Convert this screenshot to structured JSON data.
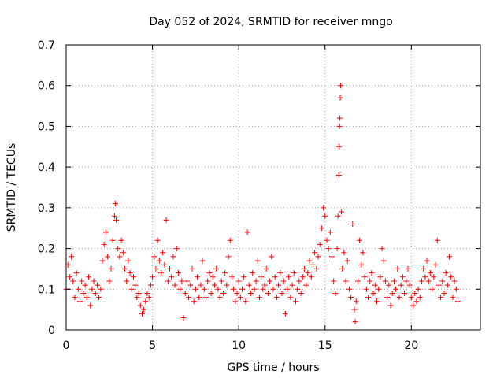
{
  "chart_data": {
    "type": "scatter",
    "title": "Day 052 of 2024, SRMTID for receiver mngo",
    "xlabel": "GPS time / hours",
    "ylabel": "SRMTID / TECUs",
    "xlim": [
      0,
      24
    ],
    "ylim": [
      0,
      0.7
    ],
    "xticks": [
      0,
      5,
      10,
      15,
      20
    ],
    "yticks": [
      0,
      0.1,
      0.2,
      0.3,
      0.4,
      0.5,
      0.6,
      0.7
    ],
    "xtick_labels": [
      "0",
      "5",
      "10",
      "15",
      "20"
    ],
    "ytick_labels": [
      "0",
      "0.1",
      "0.2",
      "0.3",
      "0.4",
      "0.5",
      "0.6",
      "0.7"
    ],
    "grid": true,
    "marker": "+",
    "color": "#ff0000",
    "series": [
      {
        "name": "SRMTID",
        "points": [
          [
            0.0,
            0.1
          ],
          [
            0.1,
            0.16
          ],
          [
            0.2,
            0.13
          ],
          [
            0.3,
            0.18
          ],
          [
            0.4,
            0.12
          ],
          [
            0.5,
            0.08
          ],
          [
            0.6,
            0.14
          ],
          [
            0.7,
            0.1
          ],
          [
            0.8,
            0.07
          ],
          [
            0.9,
            0.12
          ],
          [
            1.0,
            0.09
          ],
          [
            1.1,
            0.11
          ],
          [
            1.2,
            0.08
          ],
          [
            1.3,
            0.13
          ],
          [
            1.4,
            0.06
          ],
          [
            1.5,
            0.1
          ],
          [
            1.6,
            0.12
          ],
          [
            1.7,
            0.09
          ],
          [
            1.8,
            0.11
          ],
          [
            1.9,
            0.08
          ],
          [
            2.0,
            0.1
          ],
          [
            2.1,
            0.17
          ],
          [
            2.2,
            0.21
          ],
          [
            2.3,
            0.24
          ],
          [
            2.4,
            0.18
          ],
          [
            2.5,
            0.12
          ],
          [
            2.6,
            0.15
          ],
          [
            2.7,
            0.22
          ],
          [
            2.8,
            0.28
          ],
          [
            2.85,
            0.31
          ],
          [
            2.9,
            0.27
          ],
          [
            3.0,
            0.2
          ],
          [
            3.1,
            0.18
          ],
          [
            3.2,
            0.22
          ],
          [
            3.3,
            0.19
          ],
          [
            3.4,
            0.15
          ],
          [
            3.5,
            0.12
          ],
          [
            3.6,
            0.17
          ],
          [
            3.7,
            0.14
          ],
          [
            3.8,
            0.1
          ],
          [
            3.9,
            0.13
          ],
          [
            4.0,
            0.11
          ],
          [
            4.1,
            0.08
          ],
          [
            4.2,
            0.09
          ],
          [
            4.3,
            0.06
          ],
          [
            4.4,
            0.04
          ],
          [
            4.5,
            0.05
          ],
          [
            4.6,
            0.07
          ],
          [
            4.7,
            0.09
          ],
          [
            4.8,
            0.08
          ],
          [
            4.9,
            0.11
          ],
          [
            5.0,
            0.13
          ],
          [
            5.1,
            0.18
          ],
          [
            5.2,
            0.15
          ],
          [
            5.3,
            0.22
          ],
          [
            5.4,
            0.17
          ],
          [
            5.5,
            0.14
          ],
          [
            5.6,
            0.19
          ],
          [
            5.7,
            0.16
          ],
          [
            5.8,
            0.27
          ],
          [
            5.9,
            0.12
          ],
          [
            6.0,
            0.15
          ],
          [
            6.1,
            0.13
          ],
          [
            6.2,
            0.18
          ],
          [
            6.3,
            0.11
          ],
          [
            6.4,
            0.2
          ],
          [
            6.5,
            0.14
          ],
          [
            6.6,
            0.1
          ],
          [
            6.7,
            0.12
          ],
          [
            6.8,
            0.03
          ],
          [
            6.9,
            0.09
          ],
          [
            7.0,
            0.12
          ],
          [
            7.1,
            0.08
          ],
          [
            7.2,
            0.11
          ],
          [
            7.3,
            0.15
          ],
          [
            7.4,
            0.07
          ],
          [
            7.5,
            0.1
          ],
          [
            7.6,
            0.13
          ],
          [
            7.7,
            0.08
          ],
          [
            7.8,
            0.11
          ],
          [
            7.9,
            0.17
          ],
          [
            8.0,
            0.1
          ],
          [
            8.1,
            0.08
          ],
          [
            8.2,
            0.12
          ],
          [
            8.3,
            0.14
          ],
          [
            8.4,
            0.09
          ],
          [
            8.5,
            0.13
          ],
          [
            8.6,
            0.11
          ],
          [
            8.7,
            0.15
          ],
          [
            8.8,
            0.1
          ],
          [
            8.9,
            0.08
          ],
          [
            9.0,
            0.12
          ],
          [
            9.1,
            0.09
          ],
          [
            9.2,
            0.14
          ],
          [
            9.3,
            0.11
          ],
          [
            9.4,
            0.18
          ],
          [
            9.5,
            0.22
          ],
          [
            9.6,
            0.13
          ],
          [
            9.7,
            0.1
          ],
          [
            9.8,
            0.07
          ],
          [
            9.9,
            0.09
          ],
          [
            10.0,
            0.12
          ],
          [
            10.1,
            0.08
          ],
          [
            10.2,
            0.1
          ],
          [
            10.3,
            0.13
          ],
          [
            10.4,
            0.07
          ],
          [
            10.5,
            0.24
          ],
          [
            10.6,
            0.11
          ],
          [
            10.7,
            0.09
          ],
          [
            10.8,
            0.14
          ],
          [
            10.9,
            0.1
          ],
          [
            11.0,
            0.12
          ],
          [
            11.1,
            0.17
          ],
          [
            11.2,
            0.08
          ],
          [
            11.3,
            0.13
          ],
          [
            11.4,
            0.1
          ],
          [
            11.5,
            0.11
          ],
          [
            11.6,
            0.15
          ],
          [
            11.7,
            0.09
          ],
          [
            11.8,
            0.12
          ],
          [
            11.9,
            0.18
          ],
          [
            12.0,
            0.1
          ],
          [
            12.1,
            0.13
          ],
          [
            12.2,
            0.08
          ],
          [
            12.3,
            0.11
          ],
          [
            12.4,
            0.14
          ],
          [
            12.5,
            0.09
          ],
          [
            12.6,
            0.12
          ],
          [
            12.7,
            0.04
          ],
          [
            12.8,
            0.1
          ],
          [
            12.9,
            0.13
          ],
          [
            13.0,
            0.08
          ],
          [
            13.1,
            0.11
          ],
          [
            13.2,
            0.14
          ],
          [
            13.3,
            0.07
          ],
          [
            13.4,
            0.1
          ],
          [
            13.5,
            0.12
          ],
          [
            13.6,
            0.09
          ],
          [
            13.7,
            0.13
          ],
          [
            13.8,
            0.15
          ],
          [
            13.9,
            0.11
          ],
          [
            14.0,
            0.14
          ],
          [
            14.1,
            0.17
          ],
          [
            14.2,
            0.13
          ],
          [
            14.3,
            0.16
          ],
          [
            14.4,
            0.19
          ],
          [
            14.5,
            0.15
          ],
          [
            14.6,
            0.18
          ],
          [
            14.7,
            0.21
          ],
          [
            14.8,
            0.25
          ],
          [
            14.9,
            0.3
          ],
          [
            15.0,
            0.28
          ],
          [
            15.1,
            0.22
          ],
          [
            15.2,
            0.2
          ],
          [
            15.3,
            0.24
          ],
          [
            15.4,
            0.18
          ],
          [
            15.5,
            0.12
          ],
          [
            15.6,
            0.09
          ],
          [
            15.7,
            0.2
          ],
          [
            15.75,
            0.28
          ],
          [
            15.8,
            0.38
          ],
          [
            15.82,
            0.45
          ],
          [
            15.84,
            0.5
          ],
          [
            15.86,
            0.52
          ],
          [
            15.88,
            0.57
          ],
          [
            15.9,
            0.6
          ],
          [
            15.95,
            0.29
          ],
          [
            16.0,
            0.15
          ],
          [
            16.1,
            0.19
          ],
          [
            16.2,
            0.12
          ],
          [
            16.3,
            0.17
          ],
          [
            16.4,
            0.1
          ],
          [
            16.5,
            0.08
          ],
          [
            16.6,
            0.26
          ],
          [
            16.7,
            0.05
          ],
          [
            16.75,
            0.02
          ],
          [
            16.8,
            0.07
          ],
          [
            16.9,
            0.12
          ],
          [
            17.0,
            0.22
          ],
          [
            17.1,
            0.16
          ],
          [
            17.2,
            0.19
          ],
          [
            17.3,
            0.13
          ],
          [
            17.4,
            0.1
          ],
          [
            17.5,
            0.08
          ],
          [
            17.6,
            0.12
          ],
          [
            17.7,
            0.14
          ],
          [
            17.8,
            0.09
          ],
          [
            17.9,
            0.11
          ],
          [
            18.0,
            0.07
          ],
          [
            18.1,
            0.1
          ],
          [
            18.2,
            0.13
          ],
          [
            18.3,
            0.2
          ],
          [
            18.4,
            0.17
          ],
          [
            18.5,
            0.12
          ],
          [
            18.6,
            0.08
          ],
          [
            18.7,
            0.11
          ],
          [
            18.8,
            0.06
          ],
          [
            18.9,
            0.09
          ],
          [
            19.0,
            0.12
          ],
          [
            19.1,
            0.1
          ],
          [
            19.2,
            0.15
          ],
          [
            19.3,
            0.08
          ],
          [
            19.4,
            0.11
          ],
          [
            19.5,
            0.13
          ],
          [
            19.6,
            0.09
          ],
          [
            19.7,
            0.12
          ],
          [
            19.8,
            0.15
          ],
          [
            19.9,
            0.11
          ],
          [
            20.0,
            0.08
          ],
          [
            20.1,
            0.06
          ],
          [
            20.2,
            0.09
          ],
          [
            20.3,
            0.07
          ],
          [
            20.4,
            0.1
          ],
          [
            20.5,
            0.08
          ],
          [
            20.6,
            0.12
          ],
          [
            20.7,
            0.15
          ],
          [
            20.8,
            0.13
          ],
          [
            20.9,
            0.17
          ],
          [
            21.0,
            0.12
          ],
          [
            21.1,
            0.14
          ],
          [
            21.2,
            0.1
          ],
          [
            21.3,
            0.13
          ],
          [
            21.4,
            0.16
          ],
          [
            21.5,
            0.22
          ],
          [
            21.6,
            0.11
          ],
          [
            21.7,
            0.08
          ],
          [
            21.8,
            0.12
          ],
          [
            21.9,
            0.09
          ],
          [
            22.0,
            0.14
          ],
          [
            22.1,
            0.11
          ],
          [
            22.2,
            0.18
          ],
          [
            22.3,
            0.13
          ],
          [
            22.4,
            0.08
          ],
          [
            22.5,
            0.12
          ],
          [
            22.6,
            0.1
          ],
          [
            22.7,
            0.07
          ]
        ]
      }
    ]
  }
}
